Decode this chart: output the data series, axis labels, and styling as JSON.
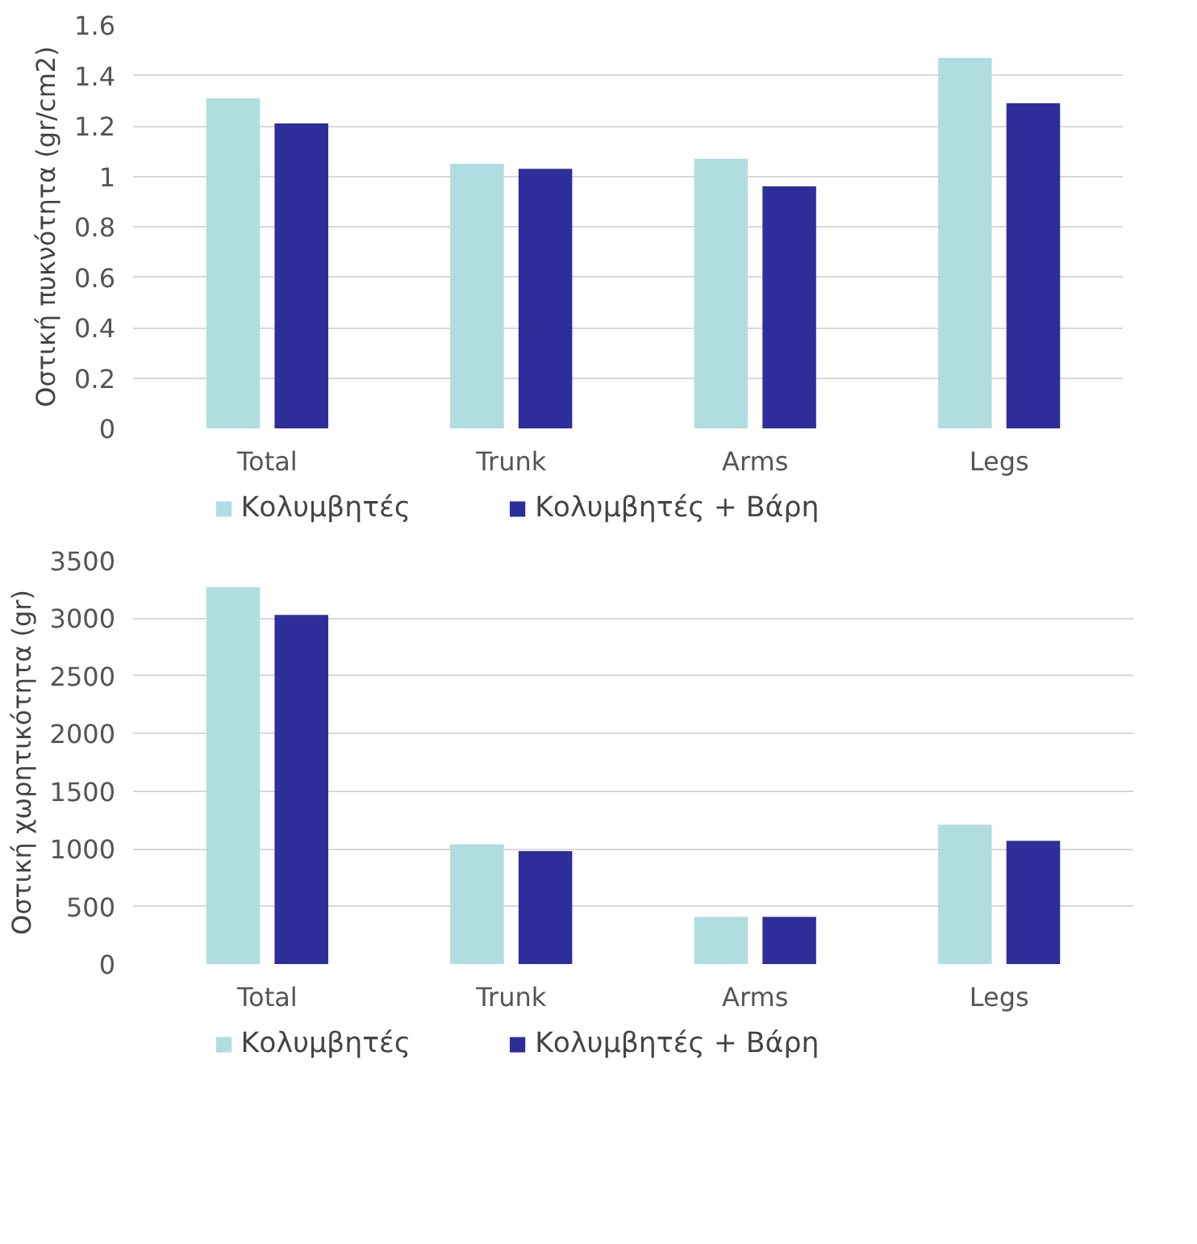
{
  "chart_data": [
    {
      "type": "bar",
      "ylabel": "Οστική πυκνότητα (gr/cm2)",
      "categories": [
        "Total",
        "Trunk",
        "Arms",
        "Legs"
      ],
      "series": [
        {
          "name": "Κολυμβητές",
          "color": "#b0dde0",
          "values": [
            1.31,
            1.05,
            1.07,
            1.47
          ]
        },
        {
          "name": "Κολυμβητές + Βάρη",
          "color": "#2e2e9a",
          "values": [
            1.21,
            1.03,
            0.96,
            1.29
          ]
        }
      ],
      "ylim": [
        0,
        1.6
      ],
      "yticks": [
        0,
        0.2,
        0.4,
        0.6,
        0.8,
        1,
        1.2,
        1.4,
        1.6
      ],
      "grid": "y",
      "legend": "bottom"
    },
    {
      "type": "bar",
      "ylabel": "Οστική χωρητικότητα (gr)",
      "categories": [
        "Total",
        "Trunk",
        "Arms",
        "Legs"
      ],
      "series": [
        {
          "name": "Κολυμβητές",
          "color": "#b0dde0",
          "values": [
            3270,
            1040,
            410,
            1210
          ]
        },
        {
          "name": "Κολυμβητές + Βάρη",
          "color": "#2e2e9a",
          "values": [
            3030,
            980,
            410,
            1070
          ]
        }
      ],
      "ylim": [
        0,
        3500
      ],
      "yticks": [
        0,
        500,
        1000,
        1500,
        2000,
        2500,
        3000,
        3500
      ],
      "grid": "y",
      "legend": "bottom"
    }
  ]
}
